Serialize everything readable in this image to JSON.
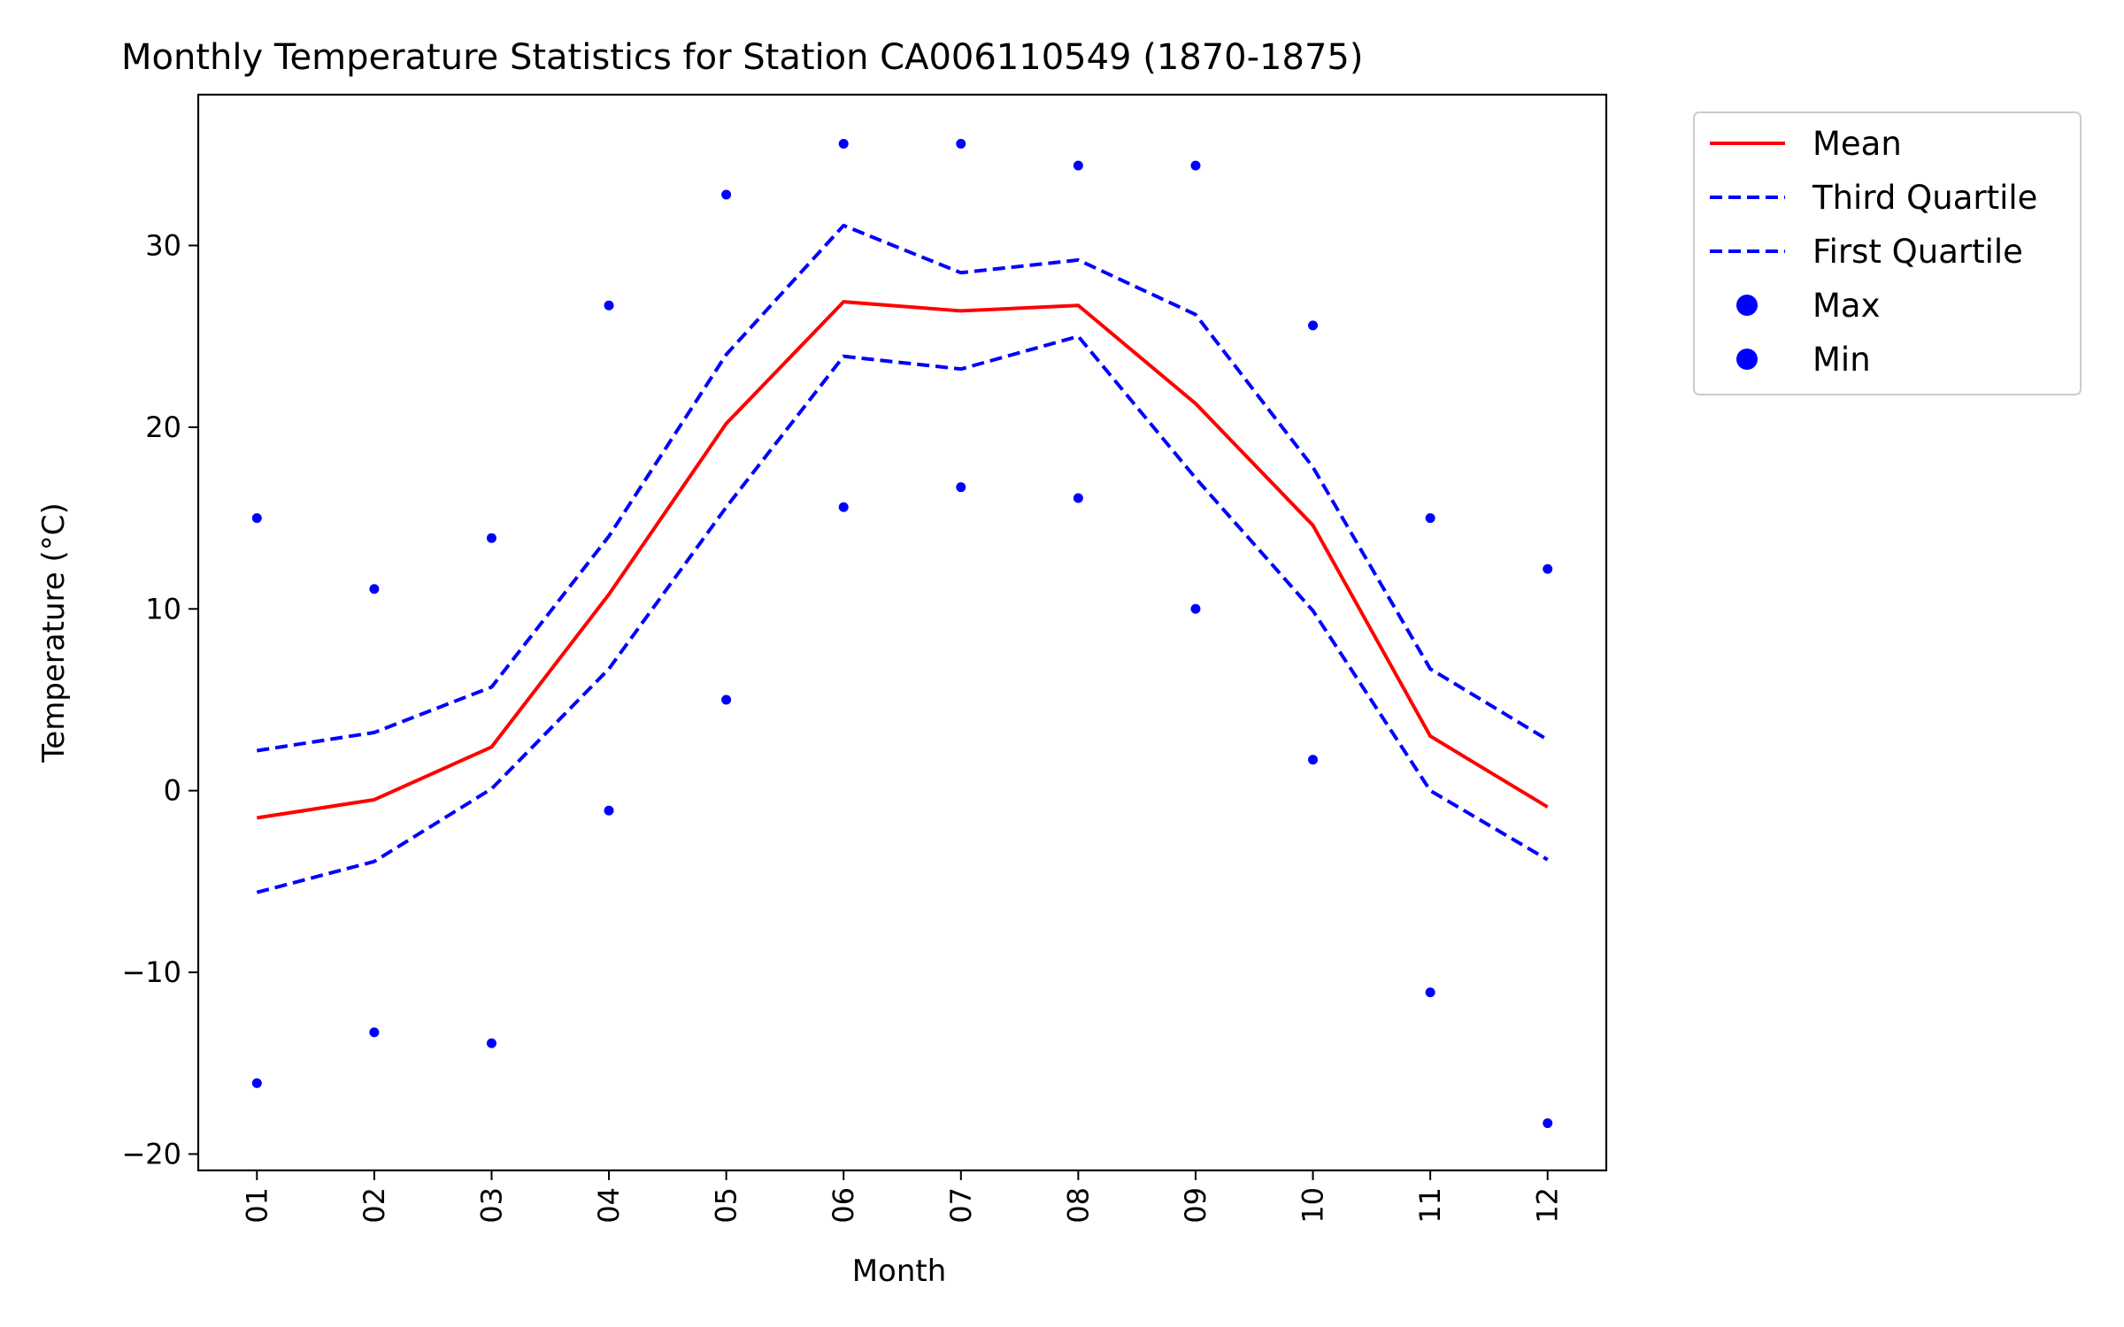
{
  "chart_data": {
    "type": "line",
    "title": "Monthly Temperature Statistics for Station CA006110549 (1870-1875)",
    "xlabel": "Month",
    "ylabel": "Temperature (°C)",
    "categories": [
      "01",
      "02",
      "03",
      "04",
      "05",
      "06",
      "07",
      "08",
      "09",
      "10",
      "11",
      "12"
    ],
    "ylim": [
      -20.9,
      38.3
    ],
    "yticks": [
      -20,
      -10,
      0,
      10,
      20,
      30
    ],
    "ytick_labels": [
      "−20",
      "−10",
      "0",
      "10",
      "20",
      "30"
    ],
    "grid": false,
    "legend_position": "outside-top-right",
    "series": [
      {
        "name": "Mean",
        "style": "solid",
        "color": "#ff0000",
        "values": [
          -1.5,
          -0.5,
          2.4,
          10.8,
          20.2,
          26.9,
          26.4,
          26.7,
          21.3,
          14.6,
          3.0,
          -0.9
        ]
      },
      {
        "name": "Third Quartile",
        "style": "dashed",
        "color": "#0000ff",
        "values": [
          2.2,
          3.2,
          5.7,
          14.0,
          24.0,
          31.1,
          28.5,
          29.2,
          26.2,
          17.8,
          6.7,
          2.8
        ]
      },
      {
        "name": "First Quartile",
        "style": "dashed",
        "color": "#0000ff",
        "values": [
          -5.6,
          -3.9,
          0.1,
          6.7,
          15.6,
          23.9,
          23.2,
          25.0,
          17.2,
          9.9,
          0.0,
          -3.8
        ]
      },
      {
        "name": "Max",
        "style": "points",
        "color": "#0000ff",
        "values": [
          15.0,
          11.1,
          13.9,
          26.7,
          32.8,
          35.6,
          35.6,
          34.4,
          34.4,
          25.6,
          15.0,
          12.2
        ]
      },
      {
        "name": "Min",
        "style": "points",
        "color": "#0000ff",
        "values": [
          -16.1,
          -13.3,
          -13.9,
          -1.1,
          5.0,
          15.6,
          16.7,
          16.1,
          10.0,
          1.7,
          -11.1,
          -18.3
        ]
      }
    ]
  }
}
